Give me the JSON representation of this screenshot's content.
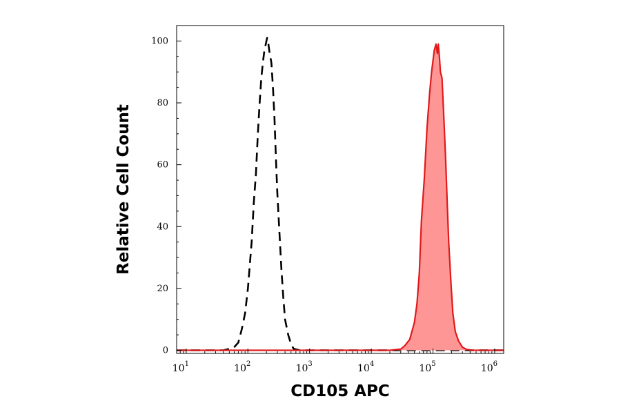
{
  "chart_data": {
    "type": "area",
    "xlabel": "CD105 APC",
    "ylabel": "Relative Cell Count",
    "x_scale": "log",
    "xlim": [
      7,
      1400000
    ],
    "ylim": [
      -1,
      105
    ],
    "y_ticks": [
      "0",
      "20",
      "40",
      "60",
      "80",
      "100"
    ],
    "y_tick_values": [
      0,
      20,
      40,
      60,
      80,
      100
    ],
    "x_ticks": [
      {
        "value": 10,
        "base": "10",
        "exp": "1"
      },
      {
        "value": 100,
        "base": "10",
        "exp": "2"
      },
      {
        "value": 1000,
        "base": "10",
        "exp": "3"
      },
      {
        "value": 10000,
        "base": "10",
        "exp": "4"
      },
      {
        "value": 100000,
        "base": "10",
        "exp": "5"
      },
      {
        "value": 1000000,
        "base": "10",
        "exp": "6"
      }
    ],
    "grid": false,
    "series": [
      {
        "style": "dashed",
        "color": "#000000",
        "filled": false,
        "points": [
          [
            7,
            0
          ],
          [
            40,
            0
          ],
          [
            50,
            0.5
          ],
          [
            60,
            1
          ],
          [
            70,
            2.5
          ],
          [
            80,
            7
          ],
          [
            90,
            12
          ],
          [
            100,
            20
          ],
          [
            115,
            35
          ],
          [
            125,
            48
          ],
          [
            135,
            57
          ],
          [
            145,
            70
          ],
          [
            155,
            80
          ],
          [
            165,
            88
          ],
          [
            175,
            93
          ],
          [
            185,
            97
          ],
          [
            195,
            99
          ],
          [
            205,
            101
          ],
          [
            215,
            99
          ],
          [
            225,
            96
          ],
          [
            240,
            93
          ],
          [
            255,
            85
          ],
          [
            270,
            75
          ],
          [
            285,
            62
          ],
          [
            300,
            51
          ],
          [
            325,
            38
          ],
          [
            350,
            26
          ],
          [
            375,
            17
          ],
          [
            400,
            10
          ],
          [
            450,
            5
          ],
          [
            500,
            2
          ],
          [
            550,
            0.5
          ],
          [
            700,
            0
          ],
          [
            900,
            0
          ],
          [
            1000,
            0
          ],
          [
            1400000,
            0
          ]
        ]
      },
      {
        "style": "solid",
        "color": "#e0191b",
        "fill": "#ff9696",
        "filled": true,
        "points": [
          [
            7,
            0
          ],
          [
            20000,
            0
          ],
          [
            30000,
            0.4
          ],
          [
            35000,
            1.5
          ],
          [
            42000,
            3.5
          ],
          [
            50000,
            9
          ],
          [
            55000,
            15
          ],
          [
            60000,
            25
          ],
          [
            65000,
            42
          ],
          [
            72000,
            55
          ],
          [
            80000,
            72
          ],
          [
            88000,
            83
          ],
          [
            95000,
            90
          ],
          [
            105000,
            97
          ],
          [
            112000,
            99
          ],
          [
            118000,
            96
          ],
          [
            122000,
            99
          ],
          [
            127000,
            95
          ],
          [
            132000,
            90
          ],
          [
            140000,
            88
          ],
          [
            150000,
            75
          ],
          [
            160000,
            62
          ],
          [
            170000,
            48
          ],
          [
            180000,
            35
          ],
          [
            195000,
            22
          ],
          [
            210000,
            12
          ],
          [
            230000,
            6
          ],
          [
            260000,
            3
          ],
          [
            300000,
            1
          ],
          [
            350000,
            0.3
          ],
          [
            450000,
            0
          ],
          [
            1400000,
            0
          ]
        ]
      }
    ]
  }
}
